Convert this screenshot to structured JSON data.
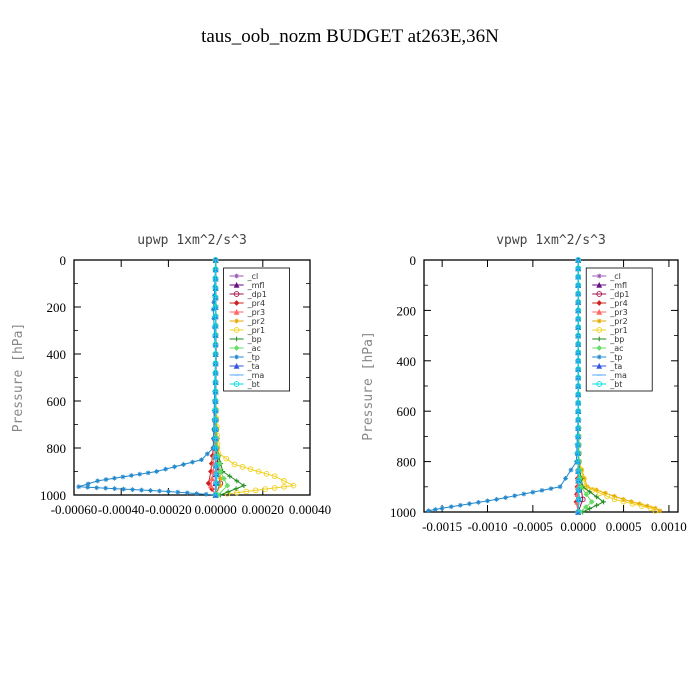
{
  "figure": {
    "title": "taus_oob_nozm  BUDGET at263E,36N"
  },
  "chart_data": [
    {
      "type": "line",
      "title": "upwp   1xm^2/s^3",
      "ylabel": "Pressure [hPa]",
      "xlim": [
        -0.0006,
        0.0004
      ],
      "ylim": [
        1000,
        0
      ],
      "xticks": [
        -0.0006,
        -0.0004,
        -0.0002,
        0.0,
        0.0002,
        0.0004
      ],
      "xtick_labels": [
        "-0.00060",
        "-0.00040",
        "-0.00020",
        "0.00000",
        "0.00020",
        "0.00040"
      ],
      "yticks": [
        0,
        200,
        400,
        600,
        800,
        1000
      ],
      "ytick_labels": [
        "0",
        "200",
        "400",
        "600",
        "800",
        "1000"
      ],
      "legend_position": "top-right",
      "series": [
        {
          "name": "_cl",
          "color": "#9b59b6",
          "marker": "star",
          "x": [
            0,
            0,
            3e-06,
            1e-06,
            0,
            -2e-06,
            0
          ],
          "y": [
            0,
            200,
            400,
            600,
            800,
            950,
            1000
          ]
        },
        {
          "name": "_mfl",
          "color": "#6a0d83",
          "marker": "triangle",
          "x": [
            0,
            0,
            0,
            0,
            0,
            0,
            0
          ],
          "y": [
            0,
            200,
            400,
            600,
            800,
            950,
            1000
          ]
        },
        {
          "name": "_dp1",
          "color": "#a0134a",
          "marker": "circle",
          "x": [
            0,
            0,
            0,
            0,
            5e-06,
            1e-05,
            2e-05,
            0
          ],
          "y": [
            0,
            200,
            400,
            600,
            800,
            900,
            950,
            1000
          ]
        },
        {
          "name": "_pr4",
          "color": "#cc2222",
          "marker": "diamond",
          "x": [
            0,
            0,
            0,
            0,
            -1e-05,
            -2e-05,
            -3e-05,
            0
          ],
          "y": [
            0,
            200,
            400,
            600,
            800,
            900,
            950,
            1000
          ]
        },
        {
          "name": "_pr3",
          "color": "#ff6666",
          "marker": "triangle",
          "x": [
            0,
            0,
            0,
            0,
            -5e-06,
            -1e-05,
            -2e-05,
            0
          ],
          "y": [
            0,
            200,
            400,
            600,
            800,
            900,
            960,
            1000
          ]
        },
        {
          "name": "_pr2",
          "color": "#e6a800",
          "marker": "star",
          "x": [
            0,
            0,
            0,
            0,
            1e-05,
            2e-05,
            2e-05,
            0
          ],
          "y": [
            0,
            200,
            400,
            600,
            800,
            900,
            960,
            1000
          ]
        },
        {
          "name": "_pr1",
          "color": "#f0d020",
          "marker": "circle",
          "x": [
            0,
            0,
            0,
            0,
            1e-05,
            8e-05,
            0.00025,
            0.00033,
            5e-05
          ],
          "y": [
            0,
            200,
            400,
            600,
            820,
            870,
            920,
            960,
            995
          ]
        },
        {
          "name": "_bp",
          "color": "#1a8a1a",
          "marker": "plus",
          "x": [
            0,
            0,
            0,
            0,
            5e-06,
            3e-05,
            0.00012,
            2e-05
          ],
          "y": [
            0,
            200,
            400,
            600,
            800,
            900,
            960,
            1000
          ]
        },
        {
          "name": "_ac",
          "color": "#66dd66",
          "marker": "diamond",
          "x": [
            0,
            0,
            0,
            0,
            5e-06,
            2e-05,
            5e-05,
            1e-05
          ],
          "y": [
            0,
            200,
            400,
            600,
            800,
            900,
            960,
            1000
          ]
        },
        {
          "name": "_tp",
          "color": "#2288cc",
          "marker": "star",
          "x": [
            0,
            -5e-06,
            -1e-05,
            0,
            -1e-05,
            -6e-05,
            -0.00025,
            -0.0005,
            -0.00058,
            -0.0002,
            0
          ],
          "y": [
            0,
            150,
            210,
            400,
            800,
            850,
            900,
            940,
            965,
            985,
            1000
          ]
        },
        {
          "name": "_ta",
          "color": "#3355dd",
          "marker": "triangle",
          "x": [
            0,
            0,
            0,
            0,
            0,
            5e-06,
            0
          ],
          "y": [
            0,
            200,
            400,
            600,
            800,
            950,
            1000
          ]
        },
        {
          "name": "_ma",
          "color": "#55aaff",
          "marker": "dash",
          "x": [
            0,
            0,
            0,
            0,
            0,
            0,
            0
          ],
          "y": [
            0,
            200,
            400,
            600,
            800,
            950,
            1000
          ]
        },
        {
          "name": "_bt",
          "color": "#00dddd",
          "marker": "circle",
          "x": [
            0,
            0,
            0,
            0,
            0,
            5e-06,
            0
          ],
          "y": [
            0,
            200,
            400,
            600,
            800,
            950,
            1000
          ]
        }
      ]
    },
    {
      "type": "line",
      "title": "vpwp   1xm^2/s^3",
      "ylabel": "Pressure [hPa]",
      "xlim": [
        -0.0017,
        0.0011
      ],
      "ylim": [
        1000,
        0
      ],
      "xticks": [
        -0.0015,
        -0.001,
        -0.0005,
        0.0,
        0.0005,
        0.001
      ],
      "xtick_labels": [
        "-0.0015",
        "-0.0010",
        "-0.0005",
        "0.0000",
        "0.0005",
        "0.0010"
      ],
      "yticks": [
        0,
        200,
        400,
        600,
        800,
        1000
      ],
      "ytick_labels": [
        "0",
        "200",
        "400",
        "600",
        "800",
        "1000"
      ],
      "legend_position": "top-right",
      "series": [
        {
          "name": "_cl",
          "color": "#9b59b6",
          "marker": "star",
          "x": [
            0,
            0,
            0,
            0,
            0,
            0,
            0
          ],
          "y": [
            0,
            200,
            400,
            600,
            800,
            950,
            1000
          ]
        },
        {
          "name": "_mfl",
          "color": "#6a0d83",
          "marker": "triangle",
          "x": [
            0,
            0,
            0,
            0,
            0,
            0,
            0
          ],
          "y": [
            0,
            200,
            400,
            600,
            800,
            950,
            1000
          ]
        },
        {
          "name": "_dp1",
          "color": "#a0134a",
          "marker": "circle",
          "x": [
            0,
            0,
            0,
            0,
            1e-05,
            3e-05,
            5e-05,
            0
          ],
          "y": [
            0,
            200,
            400,
            600,
            800,
            900,
            950,
            1000
          ]
        },
        {
          "name": "_pr4",
          "color": "#cc2222",
          "marker": "diamond",
          "x": [
            0,
            0,
            0,
            0,
            0,
            -1e-05,
            -2e-05,
            0
          ],
          "y": [
            0,
            200,
            400,
            600,
            800,
            900,
            960,
            1000
          ]
        },
        {
          "name": "_pr3",
          "color": "#ff6666",
          "marker": "triangle",
          "x": [
            0,
            0,
            0,
            0,
            0,
            -5e-06,
            -1e-05,
            0
          ],
          "y": [
            0,
            200,
            400,
            600,
            800,
            900,
            960,
            1000
          ]
        },
        {
          "name": "_pr2",
          "color": "#e6a800",
          "marker": "star",
          "x": [
            0,
            0,
            0,
            0,
            1e-05,
            0.0001,
            0.0005,
            0.00085,
            0.0009
          ],
          "y": [
            0,
            200,
            400,
            600,
            800,
            900,
            950,
            985,
            995
          ]
        },
        {
          "name": "_pr1",
          "color": "#f0d020",
          "marker": "circle",
          "x": [
            0,
            0,
            0,
            0,
            1e-05,
            8e-05,
            0.0004,
            0.0008,
            0.00085
          ],
          "y": [
            0,
            200,
            400,
            600,
            800,
            900,
            950,
            985,
            995
          ]
        },
        {
          "name": "_bp",
          "color": "#1a8a1a",
          "marker": "plus",
          "x": [
            0,
            0,
            0,
            0,
            0,
            5e-05,
            0.00028,
            5e-05
          ],
          "y": [
            0,
            200,
            400,
            600,
            800,
            900,
            960,
            1000
          ]
        },
        {
          "name": "_ac",
          "color": "#66dd66",
          "marker": "diamond",
          "x": [
            0,
            0,
            0,
            0,
            0,
            3e-05,
            0.00015,
            2e-05
          ],
          "y": [
            0,
            200,
            400,
            600,
            800,
            900,
            960,
            1000
          ]
        },
        {
          "name": "_tp",
          "color": "#2288cc",
          "marker": "star",
          "x": [
            0,
            0,
            0,
            0,
            -2e-05,
            -0.0002,
            -0.0009,
            -0.0015,
            -0.00165
          ],
          "y": [
            0,
            200,
            400,
            600,
            800,
            900,
            950,
            985,
            995
          ]
        },
        {
          "name": "_ta",
          "color": "#3355dd",
          "marker": "triangle",
          "x": [
            0,
            0,
            0,
            0,
            0,
            5e-06,
            0
          ],
          "y": [
            0,
            200,
            400,
            600,
            800,
            950,
            1000
          ]
        },
        {
          "name": "_ma",
          "color": "#55aaff",
          "marker": "dash",
          "x": [
            0,
            0,
            0,
            0,
            0,
            0,
            0
          ],
          "y": [
            0,
            200,
            400,
            600,
            800,
            950,
            1000
          ]
        },
        {
          "name": "_bt",
          "color": "#00dddd",
          "marker": "circle",
          "x": [
            0,
            0,
            0,
            0,
            0,
            5e-06,
            0
          ],
          "y": [
            0,
            200,
            400,
            600,
            800,
            950,
            1000
          ]
        }
      ]
    }
  ]
}
